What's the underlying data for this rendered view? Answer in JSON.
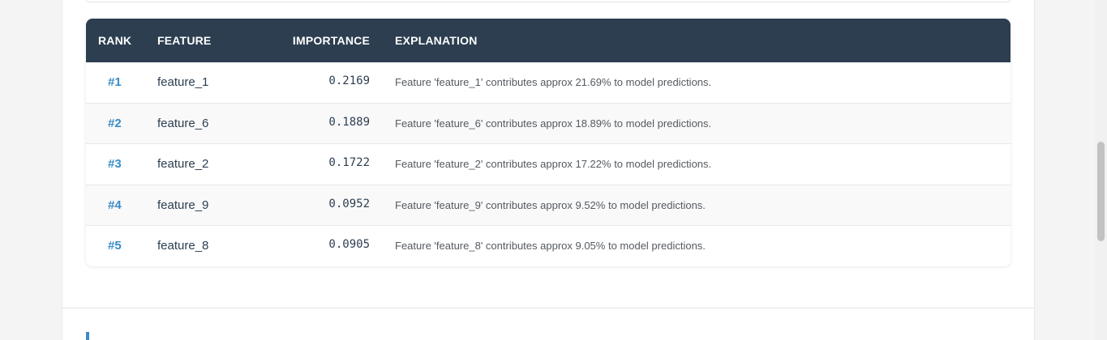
{
  "table": {
    "headers": {
      "rank": "RANK",
      "feature": "FEATURE",
      "importance": "IMPORTANCE",
      "explanation": "EXPLANATION"
    },
    "rows": [
      {
        "rank": "#1",
        "feature": "feature_1",
        "importance": "0.2169",
        "explanation": "Feature 'feature_1' contributes approx 21.69% to model predictions."
      },
      {
        "rank": "#2",
        "feature": "feature_6",
        "importance": "0.1889",
        "explanation": "Feature 'feature_6' contributes approx 18.89% to model predictions."
      },
      {
        "rank": "#3",
        "feature": "feature_2",
        "importance": "0.1722",
        "explanation": "Feature 'feature_2' contributes approx 17.22% to model predictions."
      },
      {
        "rank": "#4",
        "feature": "feature_9",
        "importance": "0.0952",
        "explanation": "Feature 'feature_9' contributes approx 9.52% to model predictions."
      },
      {
        "rank": "#5",
        "feature": "feature_8",
        "importance": "0.0905",
        "explanation": "Feature 'feature_8' contributes approx 9.05% to model predictions."
      }
    ]
  },
  "colors": {
    "header_bg": "#2c3e50",
    "rank_accent": "#3a8cc6",
    "stripe": "#f9f9f9"
  }
}
